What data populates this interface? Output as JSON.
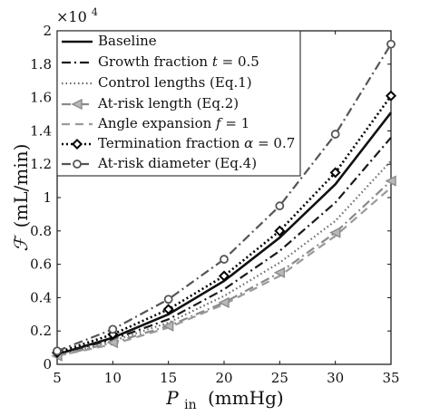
{
  "chart_data": {
    "type": "line",
    "title": "",
    "xlabel_main": "P",
    "xlabel_sub": "in",
    "xlabel_unit": "(mmHg)",
    "ylabel_symbol": "ℱ",
    "ylabel_unit": "(mL/min)",
    "y_multiplier_base": "×10",
    "y_multiplier_exp": "4",
    "xlim": [
      5,
      35
    ],
    "ylim": [
      0,
      2
    ],
    "xticks": [
      5,
      10,
      15,
      20,
      25,
      30,
      35
    ],
    "yticks": [
      0,
      0.2,
      0.4,
      0.6,
      0.8,
      1,
      1.2,
      1.4,
      1.6,
      1.8,
      2
    ],
    "xtick_labels": [
      "5",
      "10",
      "15",
      "20",
      "25",
      "30",
      "35"
    ],
    "ytick_labels": [
      "0",
      "0.2",
      "0.4",
      "0.6",
      "0.8",
      "1",
      "1.2",
      "1.4",
      "1.6",
      "1.8",
      "2"
    ],
    "grid": false,
    "legend_position": "top-left",
    "x": [
      5,
      10,
      15,
      20,
      25,
      30,
      35
    ],
    "series": [
      {
        "name": "Baseline",
        "values": [
          0.06,
          0.16,
          0.3,
          0.5,
          0.76,
          1.08,
          1.51
        ],
        "color": "#111111",
        "dash": "",
        "width": 2.6,
        "marker": "none"
      },
      {
        "name": "Growth fraction t = 0.5",
        "values": [
          0.06,
          0.15,
          0.27,
          0.45,
          0.68,
          0.97,
          1.36
        ],
        "color": "#1a1a1a",
        "dash": "10 4 2 4",
        "width": 2.2,
        "marker": "none"
      },
      {
        "name": "Control lengths (Eq.1)",
        "values": [
          0.05,
          0.14,
          0.25,
          0.41,
          0.61,
          0.86,
          1.22
        ],
        "color": "#6a6a6a",
        "dash": "1.5 3",
        "width": 2.2,
        "marker": "none"
      },
      {
        "name": "At-risk length (Eq.2)",
        "values": [
          0.05,
          0.13,
          0.23,
          0.37,
          0.55,
          0.79,
          1.1
        ],
        "color": "#8a8a8a",
        "dash": "10 4 2 4",
        "width": 2.2,
        "marker": "triangle-left"
      },
      {
        "name": "Angle expansion f = 1",
        "values": [
          0.05,
          0.12,
          0.22,
          0.36,
          0.53,
          0.77,
          1.06
        ],
        "color": "#9a9a9a",
        "dash": "9 6",
        "width": 2.2,
        "marker": "none"
      },
      {
        "name": "Termination fraction α = 0.7",
        "values": [
          0.07,
          0.18,
          0.33,
          0.53,
          0.8,
          1.15,
          1.61
        ],
        "color": "#000000",
        "dash": "2 3",
        "width": 2.6,
        "marker": "diamond"
      },
      {
        "name": "At-risk diameter (Eq.4)",
        "values": [
          0.08,
          0.21,
          0.39,
          0.63,
          0.95,
          1.38,
          1.92
        ],
        "color": "#555555",
        "dash": "10 4 2 4",
        "width": 2.2,
        "marker": "circle"
      }
    ],
    "legend": {
      "baseline": "Baseline",
      "growth_text": "Growth fraction ",
      "growth_var": "t",
      "growth_val": " = 0.5",
      "control": "Control lengths (Eq.1)",
      "atrisk_length": "At-risk length (Eq.2)",
      "angle_text": "Angle expansion ",
      "angle_var": "f",
      "angle_val": " = 1",
      "term_text": "Termination fraction ",
      "term_var": "α",
      "term_val": " = 0.7",
      "atrisk_diam": "At-risk diameter (Eq.4)"
    }
  }
}
